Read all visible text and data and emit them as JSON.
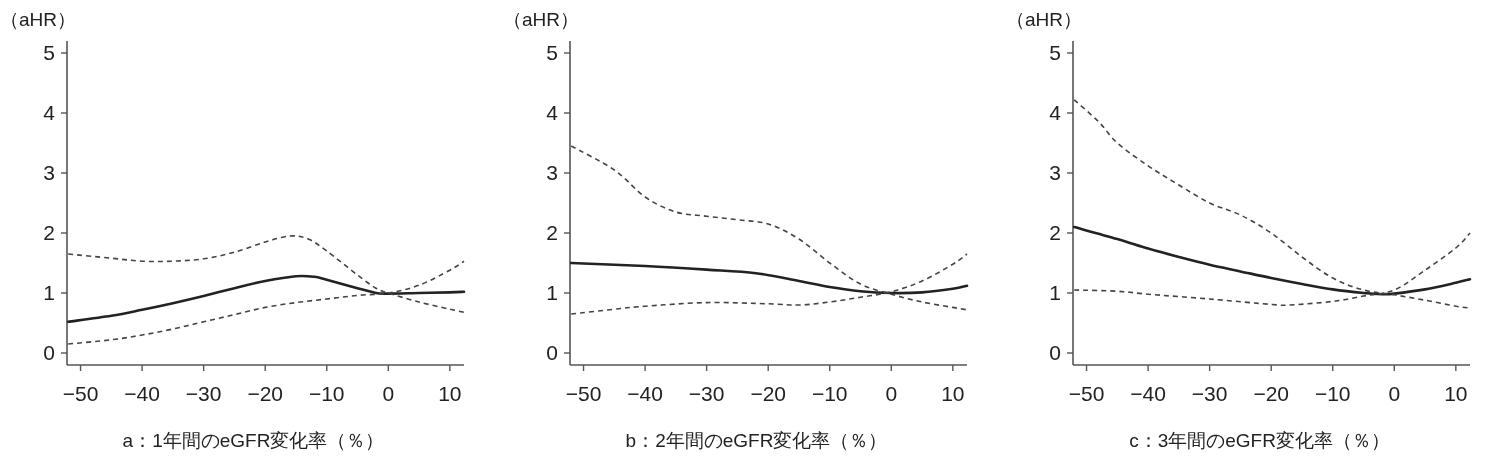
{
  "chart_data": [
    {
      "type": "line",
      "xlabel": "a：1年間のeGFR変化率（％）",
      "ylabel": "（aHR）",
      "xlim": [
        -52.2,
        12.3
      ],
      "ylim": [
        -0.2,
        5.2
      ],
      "xticks": [
        {
          "value": -50,
          "label": "−50"
        },
        {
          "value": -40,
          "label": "−40"
        },
        {
          "value": -30,
          "label": "−30"
        },
        {
          "value": -20,
          "label": "−20"
        },
        {
          "value": -10,
          "label": "−10"
        },
        {
          "value": 0,
          "label": "0"
        },
        {
          "value": 10,
          "label": "10"
        }
      ],
      "yticks": [
        0,
        1,
        2,
        3,
        4,
        5
      ],
      "series": [
        {
          "color": "#222222",
          "line_style": "solid",
          "x": [
            -52,
            -45,
            -40,
            -35,
            -30,
            -25,
            -20,
            -15,
            -12,
            -10,
            -5,
            -2,
            0,
            5,
            10,
            12.3
          ],
          "values": [
            0.52,
            0.62,
            0.72,
            0.83,
            0.95,
            1.08,
            1.2,
            1.28,
            1.27,
            1.22,
            1.08,
            1.0,
            0.99,
            1.0,
            1.01,
            1.02
          ]
        },
        {
          "color": "#444444",
          "line_style": "dashed",
          "x": [
            -52,
            -45,
            -40,
            -35,
            -30,
            -25,
            -20,
            -16,
            -13,
            -10,
            -5,
            -2,
            0,
            5,
            10,
            12.3
          ],
          "values": [
            1.65,
            1.58,
            1.53,
            1.53,
            1.57,
            1.68,
            1.85,
            1.95,
            1.9,
            1.7,
            1.3,
            1.08,
            1.0,
            0.85,
            0.73,
            0.68
          ]
        },
        {
          "color": "#444444",
          "line_style": "dashed",
          "x": [
            -52,
            -45,
            -40,
            -35,
            -30,
            -25,
            -20,
            -15,
            -10,
            -5,
            0,
            5,
            10,
            12.3
          ],
          "values": [
            0.15,
            0.22,
            0.3,
            0.4,
            0.52,
            0.64,
            0.76,
            0.84,
            0.9,
            0.96,
            1.0,
            1.13,
            1.38,
            1.53
          ]
        }
      ]
    },
    {
      "type": "line",
      "xlabel": "b：2年間のeGFR変化率（％）",
      "ylabel": "（aHR）",
      "xlim": [
        -52.2,
        12.3
      ],
      "ylim": [
        -0.2,
        5.2
      ],
      "xticks": [
        {
          "value": -50,
          "label": "−50"
        },
        {
          "value": -40,
          "label": "−40"
        },
        {
          "value": -30,
          "label": "−30"
        },
        {
          "value": -20,
          "label": "−20"
        },
        {
          "value": -10,
          "label": "−10"
        },
        {
          "value": 0,
          "label": "0"
        },
        {
          "value": 10,
          "label": "10"
        }
      ],
      "yticks": [
        0,
        1,
        2,
        3,
        4,
        5
      ],
      "series": [
        {
          "color": "#222222",
          "line_style": "solid",
          "x": [
            -52,
            -40,
            -30,
            -22,
            -15,
            -10,
            -5,
            0,
            5,
            10,
            12.3
          ],
          "values": [
            1.5,
            1.45,
            1.39,
            1.33,
            1.2,
            1.1,
            1.03,
            1.0,
            1.01,
            1.07,
            1.12
          ]
        },
        {
          "color": "#444444",
          "line_style": "dashed",
          "x": [
            -52,
            -45,
            -40,
            -35,
            -30,
            -25,
            -20,
            -15,
            -10,
            -5,
            0,
            5,
            10,
            12.3
          ],
          "values": [
            3.45,
            3.05,
            2.6,
            2.35,
            2.28,
            2.22,
            2.15,
            1.9,
            1.5,
            1.15,
            0.98,
            0.85,
            0.76,
            0.72
          ]
        },
        {
          "color": "#444444",
          "line_style": "dashed",
          "x": [
            -52,
            -45,
            -40,
            -30,
            -20,
            -15,
            -10,
            -5,
            0,
            5,
            10,
            12.3
          ],
          "values": [
            0.65,
            0.73,
            0.78,
            0.84,
            0.82,
            0.8,
            0.85,
            0.93,
            1.02,
            1.2,
            1.48,
            1.65
          ]
        }
      ]
    },
    {
      "type": "line",
      "xlabel": "c：3年間のeGFR変化率（％）",
      "ylabel": "（aHR）",
      "xlim": [
        -52.2,
        12.3
      ],
      "ylim": [
        -0.2,
        5.2
      ],
      "xticks": [
        {
          "value": -50,
          "label": "−50"
        },
        {
          "value": -40,
          "label": "−40"
        },
        {
          "value": -30,
          "label": "−30"
        },
        {
          "value": -20,
          "label": "−20"
        },
        {
          "value": -10,
          "label": "−10"
        },
        {
          "value": 0,
          "label": "0"
        },
        {
          "value": 10,
          "label": "10"
        }
      ],
      "yticks": [
        0,
        1,
        2,
        3,
        4,
        5
      ],
      "series": [
        {
          "color": "#222222",
          "line_style": "solid",
          "x": [
            -52,
            -45,
            -40,
            -35,
            -30,
            -25,
            -20,
            -15,
            -10,
            -5,
            -2,
            0,
            5,
            10,
            12.3
          ],
          "values": [
            2.1,
            1.9,
            1.74,
            1.6,
            1.47,
            1.36,
            1.25,
            1.15,
            1.06,
            1.0,
            0.98,
            0.99,
            1.06,
            1.17,
            1.23
          ]
        },
        {
          "color": "#444444",
          "line_style": "dashed",
          "x": [
            -52,
            -48,
            -45,
            -40,
            -35,
            -30,
            -25,
            -20,
            -15,
            -10,
            -5,
            0,
            5,
            10,
            12.3
          ],
          "values": [
            4.22,
            3.85,
            3.5,
            3.12,
            2.8,
            2.5,
            2.3,
            2.0,
            1.6,
            1.25,
            1.05,
            0.97,
            0.88,
            0.78,
            0.75
          ]
        },
        {
          "color": "#444444",
          "line_style": "dashed",
          "x": [
            -52,
            -45,
            -40,
            -30,
            -20,
            -17,
            -10,
            -5,
            0,
            5,
            10,
            12.3
          ],
          "values": [
            1.05,
            1.03,
            0.98,
            0.9,
            0.81,
            0.8,
            0.86,
            0.95,
            1.05,
            1.38,
            1.75,
            2.0
          ]
        }
      ]
    }
  ]
}
